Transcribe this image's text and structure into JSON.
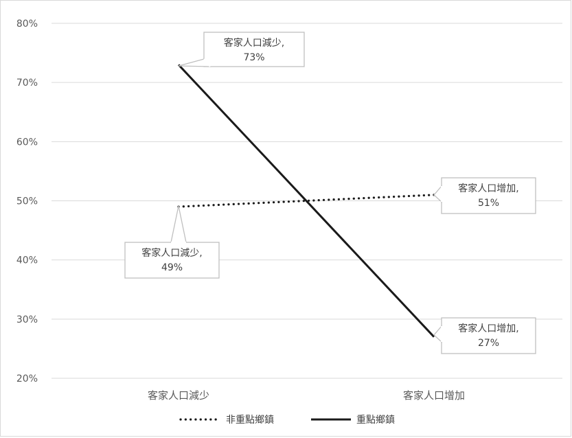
{
  "chart_data": {
    "type": "line",
    "title": "",
    "xlabel": "",
    "ylabel": "",
    "categories": [
      "客家人口減少",
      "客家人口增加"
    ],
    "ylim": [
      20,
      80
    ],
    "yticks": [
      20,
      30,
      40,
      50,
      60,
      70,
      80
    ],
    "ytick_suffix": "%",
    "grid": true,
    "legend_position": "bottom",
    "series": [
      {
        "name": "非重點鄉鎮",
        "values": [
          49,
          51
        ],
        "line_style": "dotted",
        "color": "#1a1a1a",
        "data_labels": [
          {
            "category": "客家人口減少,",
            "value": "49%"
          },
          {
            "category": "客家人口增加,",
            "value": "51%"
          }
        ]
      },
      {
        "name": "重點鄉鎮",
        "values": [
          73,
          27
        ],
        "line_style": "solid",
        "color": "#1a1a1a",
        "data_labels": [
          {
            "category": "客家人口減少,",
            "value": "73%"
          },
          {
            "category": "客家人口增加,",
            "value": "27%"
          }
        ]
      }
    ]
  }
}
